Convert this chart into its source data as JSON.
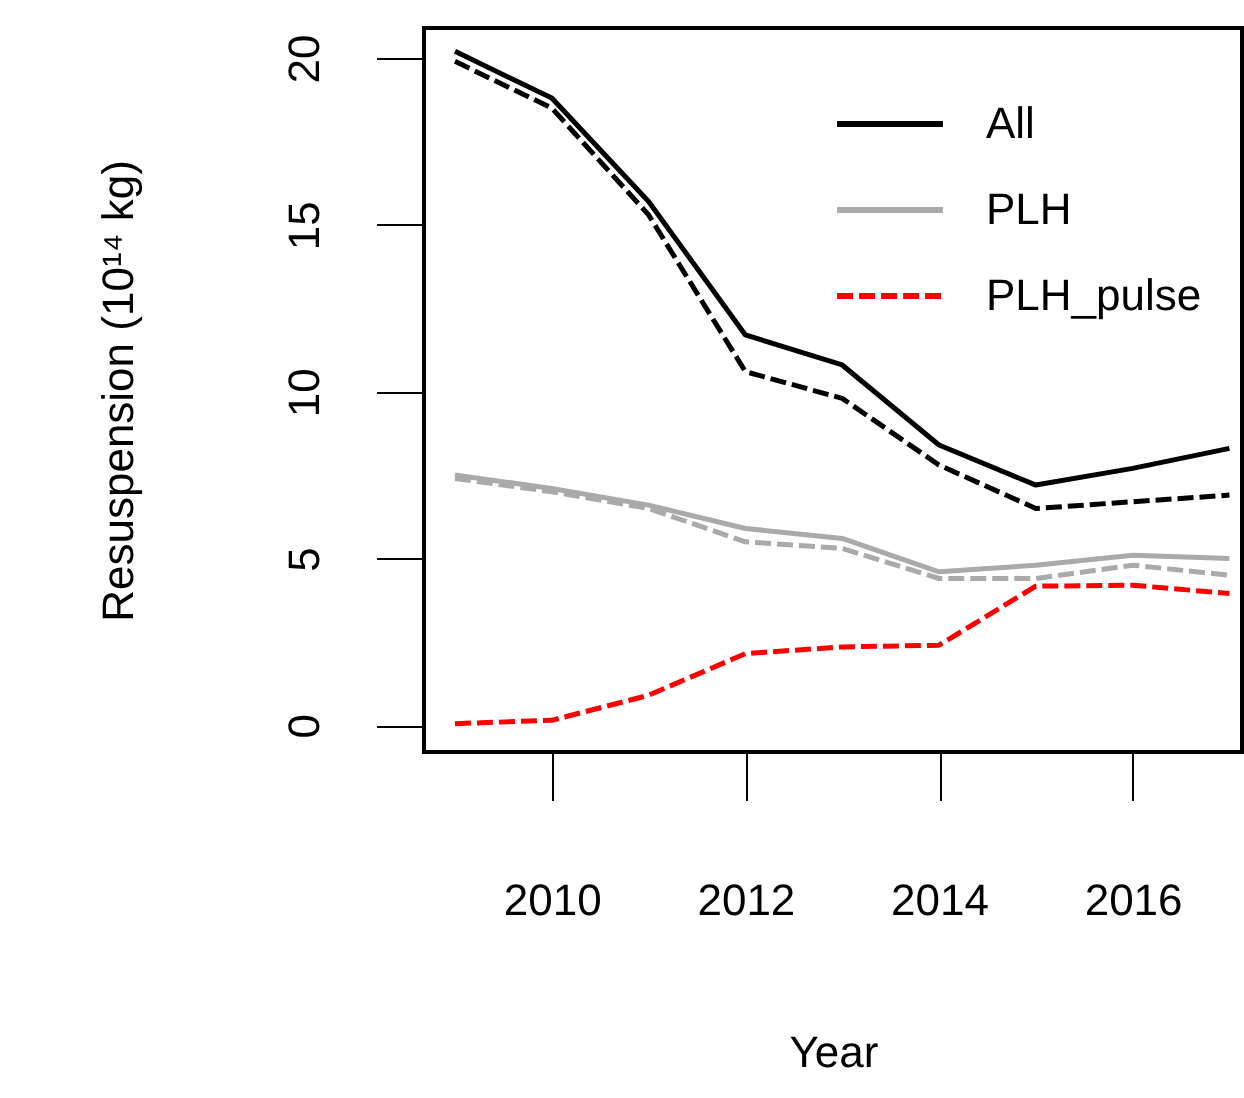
{
  "chart_data": {
    "type": "line",
    "xlabel": "Year",
    "ylabel": "Resuspension (10¹⁴ kg)",
    "x": [
      2009,
      2010,
      2011,
      2012,
      2013,
      2014,
      2015,
      2016,
      2017
    ],
    "xlim": [
      2008.68,
      2017.13
    ],
    "xticks": [
      2010,
      2012,
      2014,
      2016
    ],
    "ylim": [
      -0.8,
      20.9
    ],
    "yticks": [
      0,
      5,
      10,
      15,
      20
    ],
    "grid": false,
    "legend": "top right",
    "marker": "none",
    "series": [
      {
        "name": "All",
        "color": "#000000",
        "line_style": "solid",
        "values": [
          20.2,
          18.8,
          15.7,
          11.7,
          10.8,
          8.4,
          7.2,
          7.7,
          8.3
        ]
      },
      {
        "color": "#000000",
        "line_style": "dashed",
        "values": [
          19.9,
          18.5,
          15.3,
          10.6,
          9.8,
          7.8,
          6.5,
          6.7,
          6.9
        ]
      },
      {
        "name": "PLH",
        "color": "#aaaaaa",
        "line_style": "solid",
        "values": [
          7.5,
          7.1,
          6.6,
          5.9,
          5.6,
          4.6,
          4.8,
          5.1,
          5.0
        ]
      },
      {
        "color": "#aaaaaa",
        "line_style": "dashed",
        "values": [
          7.4,
          7.0,
          6.5,
          5.5,
          5.3,
          4.4,
          4.4,
          4.8,
          4.5
        ]
      },
      {
        "name": "PLH_pulse",
        "color": "#ff0000",
        "line_style": "dashed",
        "values": [
          0.05,
          0.15,
          0.9,
          2.15,
          2.35,
          2.4,
          4.17,
          4.2,
          3.95
        ]
      }
    ]
  }
}
